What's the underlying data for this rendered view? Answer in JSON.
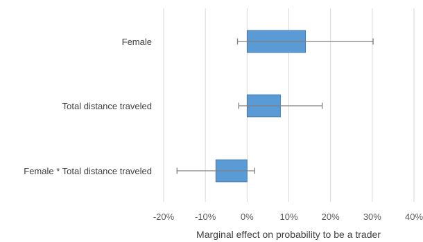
{
  "chart_data": {
    "type": "bar",
    "orientation": "horizontal",
    "title": "",
    "xlabel": "Marginal effect on probability to be a trader",
    "ylabel": "",
    "categories": [
      "Female",
      "Total distance traveled",
      "Female * Total distance traveled"
    ],
    "values": [
      0.14,
      0.08,
      -0.075
    ],
    "error_low": [
      -0.023,
      -0.02,
      -0.168
    ],
    "error_high": [
      0.302,
      0.18,
      0.018
    ],
    "xlim": [
      -0.2,
      0.4
    ],
    "xticks": [
      -0.2,
      -0.1,
      0.0,
      0.1,
      0.2,
      0.3,
      0.4
    ],
    "xtick_labels": [
      "-20%",
      "-10%",
      "0%",
      "10%",
      "20%",
      "30%",
      "40%"
    ],
    "grid": true,
    "colors": {
      "bar": "#5b9bd5",
      "bar_border": "#41719c",
      "error_bar": "#7f7f7f",
      "grid": "#d9d9d9"
    }
  }
}
